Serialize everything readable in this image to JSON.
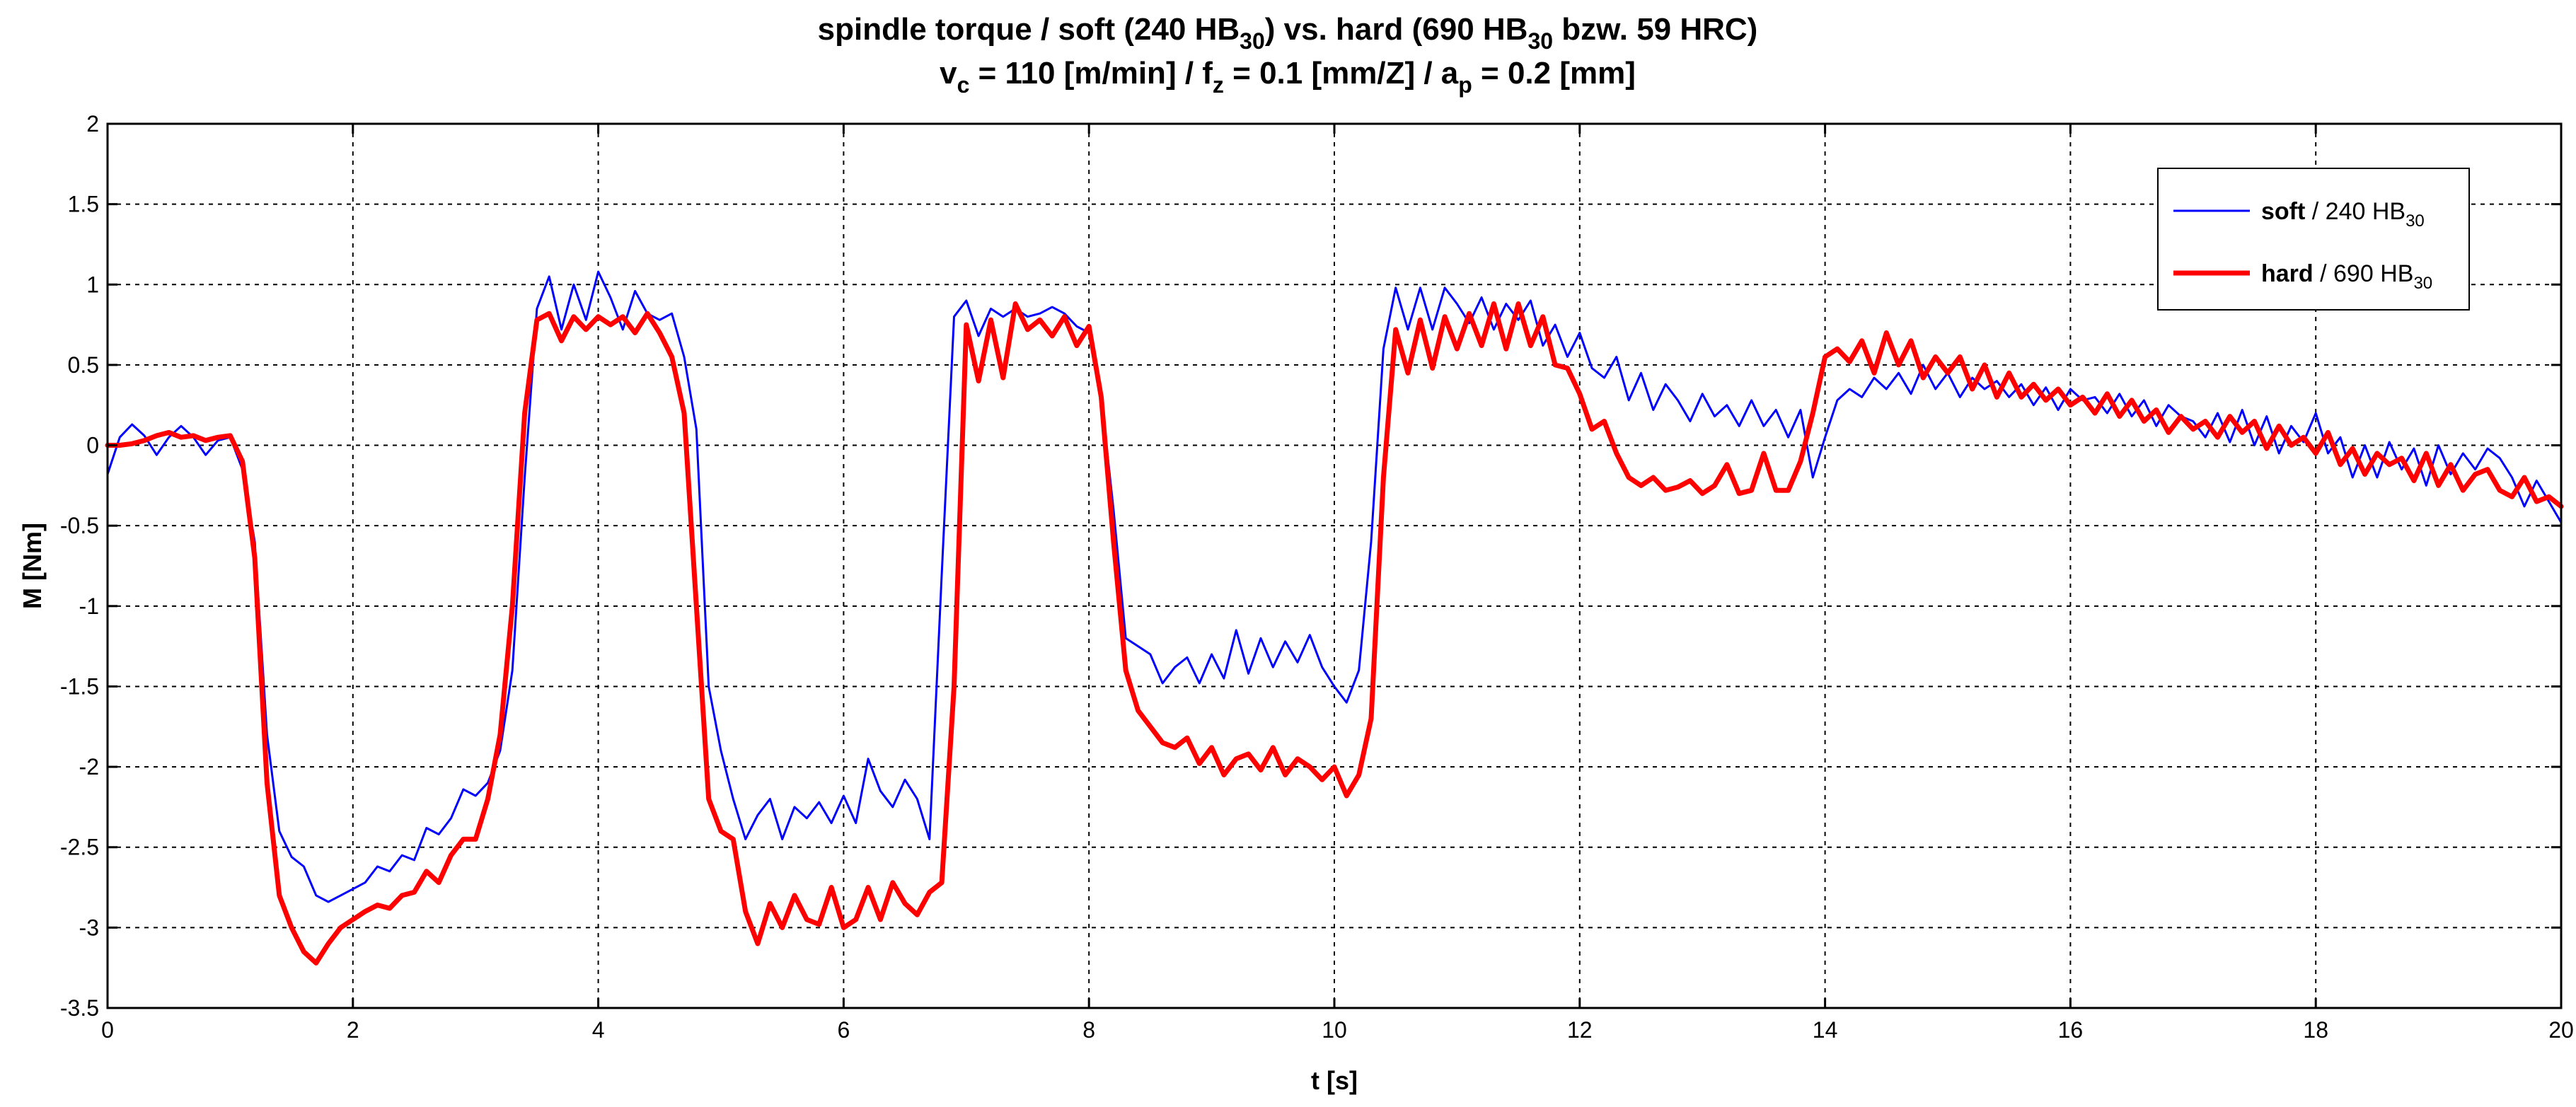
{
  "chart_data": {
    "type": "line",
    "title": {
      "line1": [
        {
          "t": "spindle torque / soft (240 HB"
        },
        {
          "t": "30",
          "sub": true
        },
        {
          "t": ") vs. hard (690 HB"
        },
        {
          "t": "30",
          "sub": true
        },
        {
          "t": " bzw. 59 HRC)"
        }
      ],
      "line2": [
        {
          "t": "v"
        },
        {
          "t": "c",
          "sub": true
        },
        {
          "t": " = 110 [m/min] / f"
        },
        {
          "t": "z",
          "sub": true
        },
        {
          "t": " = 0.1 [mm/Z] / a"
        },
        {
          "t": "p",
          "sub": true
        },
        {
          "t": " = 0.2 [mm]"
        }
      ]
    },
    "xlabel": "t [s]",
    "ylabel": "M [Nm]",
    "xlim": [
      0,
      20
    ],
    "ylim": [
      -3.5,
      2
    ],
    "xticks": [
      0,
      2,
      4,
      6,
      8,
      10,
      12,
      14,
      16,
      18,
      20
    ],
    "yticks": [
      2,
      1.5,
      1,
      0.5,
      0,
      -0.5,
      -1,
      -1.5,
      -2,
      -2.5,
      -3,
      -3.5
    ],
    "grid": true,
    "legend_position": "top-right",
    "colors": {
      "soft": "#0000ff",
      "hard": "#ff0000"
    },
    "series": [
      {
        "key": "soft",
        "legend": [
          {
            "t": "soft",
            "bold": true
          },
          {
            "t": " / 240 HB"
          },
          {
            "t": "30",
            "sub": true
          }
        ],
        "x": [
          0,
          0.1,
          0.2,
          0.3,
          0.4,
          0.5,
          0.6,
          0.7,
          0.8,
          0.9,
          1.0,
          1.1,
          1.2,
          1.3,
          1.4,
          1.5,
          1.6,
          1.7,
          1.8,
          1.9,
          2.0,
          2.1,
          2.2,
          2.3,
          2.4,
          2.5,
          2.6,
          2.7,
          2.8,
          2.9,
          3.0,
          3.1,
          3.2,
          3.3,
          3.4,
          3.5,
          3.6,
          3.7,
          3.8,
          3.9,
          4.0,
          4.1,
          4.2,
          4.3,
          4.4,
          4.5,
          4.6,
          4.7,
          4.8,
          4.9,
          5.0,
          5.1,
          5.2,
          5.3,
          5.4,
          5.5,
          5.6,
          5.7,
          5.8,
          5.9,
          6.0,
          6.1,
          6.2,
          6.3,
          6.4,
          6.5,
          6.6,
          6.7,
          6.8,
          6.9,
          7.0,
          7.1,
          7.2,
          7.3,
          7.4,
          7.5,
          7.6,
          7.7,
          7.8,
          7.9,
          8.0,
          8.1,
          8.2,
          8.3,
          8.4,
          8.5,
          8.6,
          8.7,
          8.8,
          8.9,
          9.0,
          9.1,
          9.2,
          9.3,
          9.4,
          9.5,
          9.6,
          9.7,
          9.8,
          9.9,
          10.0,
          10.1,
          10.2,
          10.3,
          10.4,
          10.5,
          10.6,
          10.7,
          10.8,
          10.9,
          11.0,
          11.1,
          11.2,
          11.3,
          11.4,
          11.5,
          11.6,
          11.7,
          11.8,
          11.9,
          12.0,
          12.1,
          12.2,
          12.3,
          12.4,
          12.5,
          12.6,
          12.7,
          12.8,
          12.9,
          13.0,
          13.1,
          13.2,
          13.3,
          13.4,
          13.5,
          13.6,
          13.7,
          13.8,
          13.9,
          14.0,
          14.1,
          14.2,
          14.3,
          14.4,
          14.5,
          14.6,
          14.7,
          14.8,
          14.9,
          15.0,
          15.1,
          15.2,
          15.3,
          15.4,
          15.5,
          15.6,
          15.7,
          15.8,
          15.9,
          16.0,
          16.1,
          16.2,
          16.3,
          16.4,
          16.5,
          16.6,
          16.7,
          16.8,
          16.9,
          17.0,
          17.1,
          17.2,
          17.3,
          17.4,
          17.5,
          17.6,
          17.7,
          17.8,
          17.9,
          18.0,
          18.1,
          18.2,
          18.3,
          18.4,
          18.5,
          18.6,
          18.7,
          18.8,
          18.9,
          19.0,
          19.1,
          19.2,
          19.3,
          19.4,
          19.5,
          19.6,
          19.7,
          19.8,
          19.9,
          20.0
        ],
        "y": [
          -0.18,
          0.05,
          0.13,
          0.06,
          -0.06,
          0.05,
          0.12,
          0.05,
          -0.06,
          0.03,
          0.05,
          -0.15,
          -0.6,
          -1.8,
          -2.4,
          -2.56,
          -2.62,
          -2.8,
          -2.84,
          -2.8,
          -2.76,
          -2.72,
          -2.62,
          -2.65,
          -2.55,
          -2.58,
          -2.38,
          -2.42,
          -2.32,
          -2.14,
          -2.18,
          -2.1,
          -1.9,
          -1.4,
          -0.2,
          0.85,
          1.05,
          0.72,
          1.0,
          0.78,
          1.08,
          0.92,
          0.72,
          0.96,
          0.82,
          0.78,
          0.82,
          0.55,
          0.1,
          -1.5,
          -1.9,
          -2.2,
          -2.45,
          -2.3,
          -2.2,
          -2.45,
          -2.25,
          -2.32,
          -2.22,
          -2.35,
          -2.18,
          -2.35,
          -1.95,
          -2.15,
          -2.25,
          -2.08,
          -2.2,
          -2.45,
          -0.8,
          0.8,
          0.9,
          0.68,
          0.85,
          0.8,
          0.85,
          0.8,
          0.82,
          0.86,
          0.82,
          0.74,
          0.7,
          0.3,
          -0.4,
          -1.2,
          -1.25,
          -1.3,
          -1.48,
          -1.38,
          -1.32,
          -1.48,
          -1.3,
          -1.45,
          -1.15,
          -1.42,
          -1.2,
          -1.38,
          -1.22,
          -1.35,
          -1.18,
          -1.38,
          -1.5,
          -1.6,
          -1.4,
          -0.6,
          0.6,
          0.98,
          0.72,
          0.98,
          0.72,
          0.98,
          0.88,
          0.76,
          0.92,
          0.72,
          0.88,
          0.78,
          0.9,
          0.62,
          0.75,
          0.55,
          0.7,
          0.48,
          0.42,
          0.55,
          0.28,
          0.45,
          0.22,
          0.38,
          0.28,
          0.15,
          0.32,
          0.18,
          0.25,
          0.12,
          0.28,
          0.12,
          0.22,
          0.05,
          0.22,
          -0.2,
          0.05,
          0.28,
          0.35,
          0.3,
          0.42,
          0.35,
          0.45,
          0.32,
          0.5,
          0.35,
          0.45,
          0.3,
          0.42,
          0.35,
          0.4,
          0.3,
          0.38,
          0.25,
          0.36,
          0.22,
          0.35,
          0.28,
          0.3,
          0.2,
          0.32,
          0.18,
          0.28,
          0.12,
          0.25,
          0.18,
          0.15,
          0.05,
          0.2,
          0.02,
          0.22,
          0.0,
          0.18,
          -0.05,
          0.12,
          0.02,
          0.2,
          -0.05,
          0.05,
          -0.2,
          0.0,
          -0.2,
          0.02,
          -0.15,
          -0.02,
          -0.25,
          0.0,
          -0.18,
          -0.05,
          -0.15,
          -0.02,
          -0.08,
          -0.2,
          -0.38,
          -0.22,
          -0.35,
          -0.48
        ]
      },
      {
        "key": "hard",
        "legend": [
          {
            "t": "hard",
            "bold": true
          },
          {
            "t": " / 690 HB"
          },
          {
            "t": "30",
            "sub": true
          }
        ],
        "x": [
          0,
          0.1,
          0.2,
          0.3,
          0.4,
          0.5,
          0.6,
          0.7,
          0.8,
          0.9,
          1.0,
          1.1,
          1.2,
          1.3,
          1.4,
          1.5,
          1.6,
          1.7,
          1.8,
          1.9,
          2.0,
          2.1,
          2.2,
          2.3,
          2.4,
          2.5,
          2.6,
          2.7,
          2.8,
          2.9,
          3.0,
          3.1,
          3.2,
          3.3,
          3.4,
          3.5,
          3.6,
          3.7,
          3.8,
          3.9,
          4.0,
          4.1,
          4.2,
          4.3,
          4.4,
          4.5,
          4.6,
          4.7,
          4.8,
          4.9,
          5.0,
          5.1,
          5.2,
          5.3,
          5.4,
          5.5,
          5.6,
          5.7,
          5.8,
          5.9,
          6.0,
          6.1,
          6.2,
          6.3,
          6.4,
          6.5,
          6.6,
          6.7,
          6.8,
          6.9,
          7.0,
          7.1,
          7.2,
          7.3,
          7.4,
          7.5,
          7.6,
          7.7,
          7.8,
          7.9,
          8.0,
          8.1,
          8.2,
          8.3,
          8.4,
          8.5,
          8.6,
          8.7,
          8.8,
          8.9,
          9.0,
          9.1,
          9.2,
          9.3,
          9.4,
          9.5,
          9.6,
          9.7,
          9.8,
          9.9,
          10.0,
          10.1,
          10.2,
          10.3,
          10.4,
          10.5,
          10.6,
          10.7,
          10.8,
          10.9,
          11.0,
          11.1,
          11.2,
          11.3,
          11.4,
          11.5,
          11.6,
          11.7,
          11.8,
          11.9,
          12.0,
          12.1,
          12.2,
          12.3,
          12.4,
          12.5,
          12.6,
          12.7,
          12.8,
          12.9,
          13.0,
          13.1,
          13.2,
          13.3,
          13.4,
          13.5,
          13.6,
          13.7,
          13.8,
          13.9,
          14.0,
          14.1,
          14.2,
          14.3,
          14.4,
          14.5,
          14.6,
          14.7,
          14.8,
          14.9,
          15.0,
          15.1,
          15.2,
          15.3,
          15.4,
          15.5,
          15.6,
          15.7,
          15.8,
          15.9,
          16.0,
          16.1,
          16.2,
          16.3,
          16.4,
          16.5,
          16.6,
          16.7,
          16.8,
          16.9,
          17.0,
          17.1,
          17.2,
          17.3,
          17.4,
          17.5,
          17.6,
          17.7,
          17.8,
          17.9,
          18.0,
          18.1,
          18.2,
          18.3,
          18.4,
          18.5,
          18.6,
          18.7,
          18.8,
          18.9,
          19.0,
          19.1,
          19.2,
          19.3,
          19.4,
          19.5,
          19.6,
          19.7,
          19.8,
          19.9,
          20.0
        ],
        "y": [
          0.0,
          0.0,
          0.01,
          0.03,
          0.06,
          0.08,
          0.05,
          0.06,
          0.03,
          0.05,
          0.06,
          -0.1,
          -0.7,
          -2.1,
          -2.8,
          -3.0,
          -3.15,
          -3.22,
          -3.1,
          -3.0,
          -2.95,
          -2.9,
          -2.86,
          -2.88,
          -2.8,
          -2.78,
          -2.65,
          -2.72,
          -2.55,
          -2.45,
          -2.45,
          -2.2,
          -1.8,
          -1.0,
          0.2,
          0.78,
          0.82,
          0.65,
          0.8,
          0.72,
          0.8,
          0.75,
          0.8,
          0.7,
          0.82,
          0.7,
          0.55,
          0.2,
          -1.0,
          -2.2,
          -2.4,
          -2.45,
          -2.9,
          -3.1,
          -2.85,
          -3.0,
          -2.8,
          -2.95,
          -2.98,
          -2.75,
          -3.0,
          -2.95,
          -2.75,
          -2.95,
          -2.72,
          -2.85,
          -2.92,
          -2.78,
          -2.72,
          -1.5,
          0.75,
          0.4,
          0.78,
          0.42,
          0.88,
          0.72,
          0.78,
          0.68,
          0.8,
          0.62,
          0.74,
          0.3,
          -0.6,
          -1.4,
          -1.65,
          -1.75,
          -1.85,
          -1.88,
          -1.82,
          -1.98,
          -1.88,
          -2.05,
          -1.95,
          -1.92,
          -2.02,
          -1.88,
          -2.05,
          -1.95,
          -2.0,
          -2.08,
          -2.0,
          -2.18,
          -2.05,
          -1.7,
          -0.2,
          0.72,
          0.45,
          0.78,
          0.48,
          0.8,
          0.6,
          0.82,
          0.62,
          0.88,
          0.6,
          0.88,
          0.62,
          0.8,
          0.5,
          0.48,
          0.32,
          0.1,
          0.15,
          -0.05,
          -0.2,
          -0.25,
          -0.2,
          -0.28,
          -0.26,
          -0.22,
          -0.3,
          -0.25,
          -0.12,
          -0.3,
          -0.28,
          -0.05,
          -0.28,
          -0.28,
          -0.1,
          0.2,
          0.55,
          0.6,
          0.52,
          0.65,
          0.45,
          0.7,
          0.5,
          0.65,
          0.42,
          0.55,
          0.45,
          0.55,
          0.35,
          0.5,
          0.3,
          0.45,
          0.3,
          0.38,
          0.28,
          0.35,
          0.25,
          0.3,
          0.2,
          0.32,
          0.18,
          0.28,
          0.15,
          0.22,
          0.08,
          0.18,
          0.1,
          0.15,
          0.05,
          0.18,
          0.08,
          0.15,
          -0.02,
          0.12,
          0.0,
          0.05,
          -0.05,
          0.08,
          -0.12,
          -0.02,
          -0.18,
          -0.05,
          -0.12,
          -0.08,
          -0.22,
          -0.05,
          -0.25,
          -0.12,
          -0.28,
          -0.18,
          -0.15,
          -0.28,
          -0.32,
          -0.2,
          -0.35,
          -0.32,
          -0.38
        ]
      }
    ]
  }
}
